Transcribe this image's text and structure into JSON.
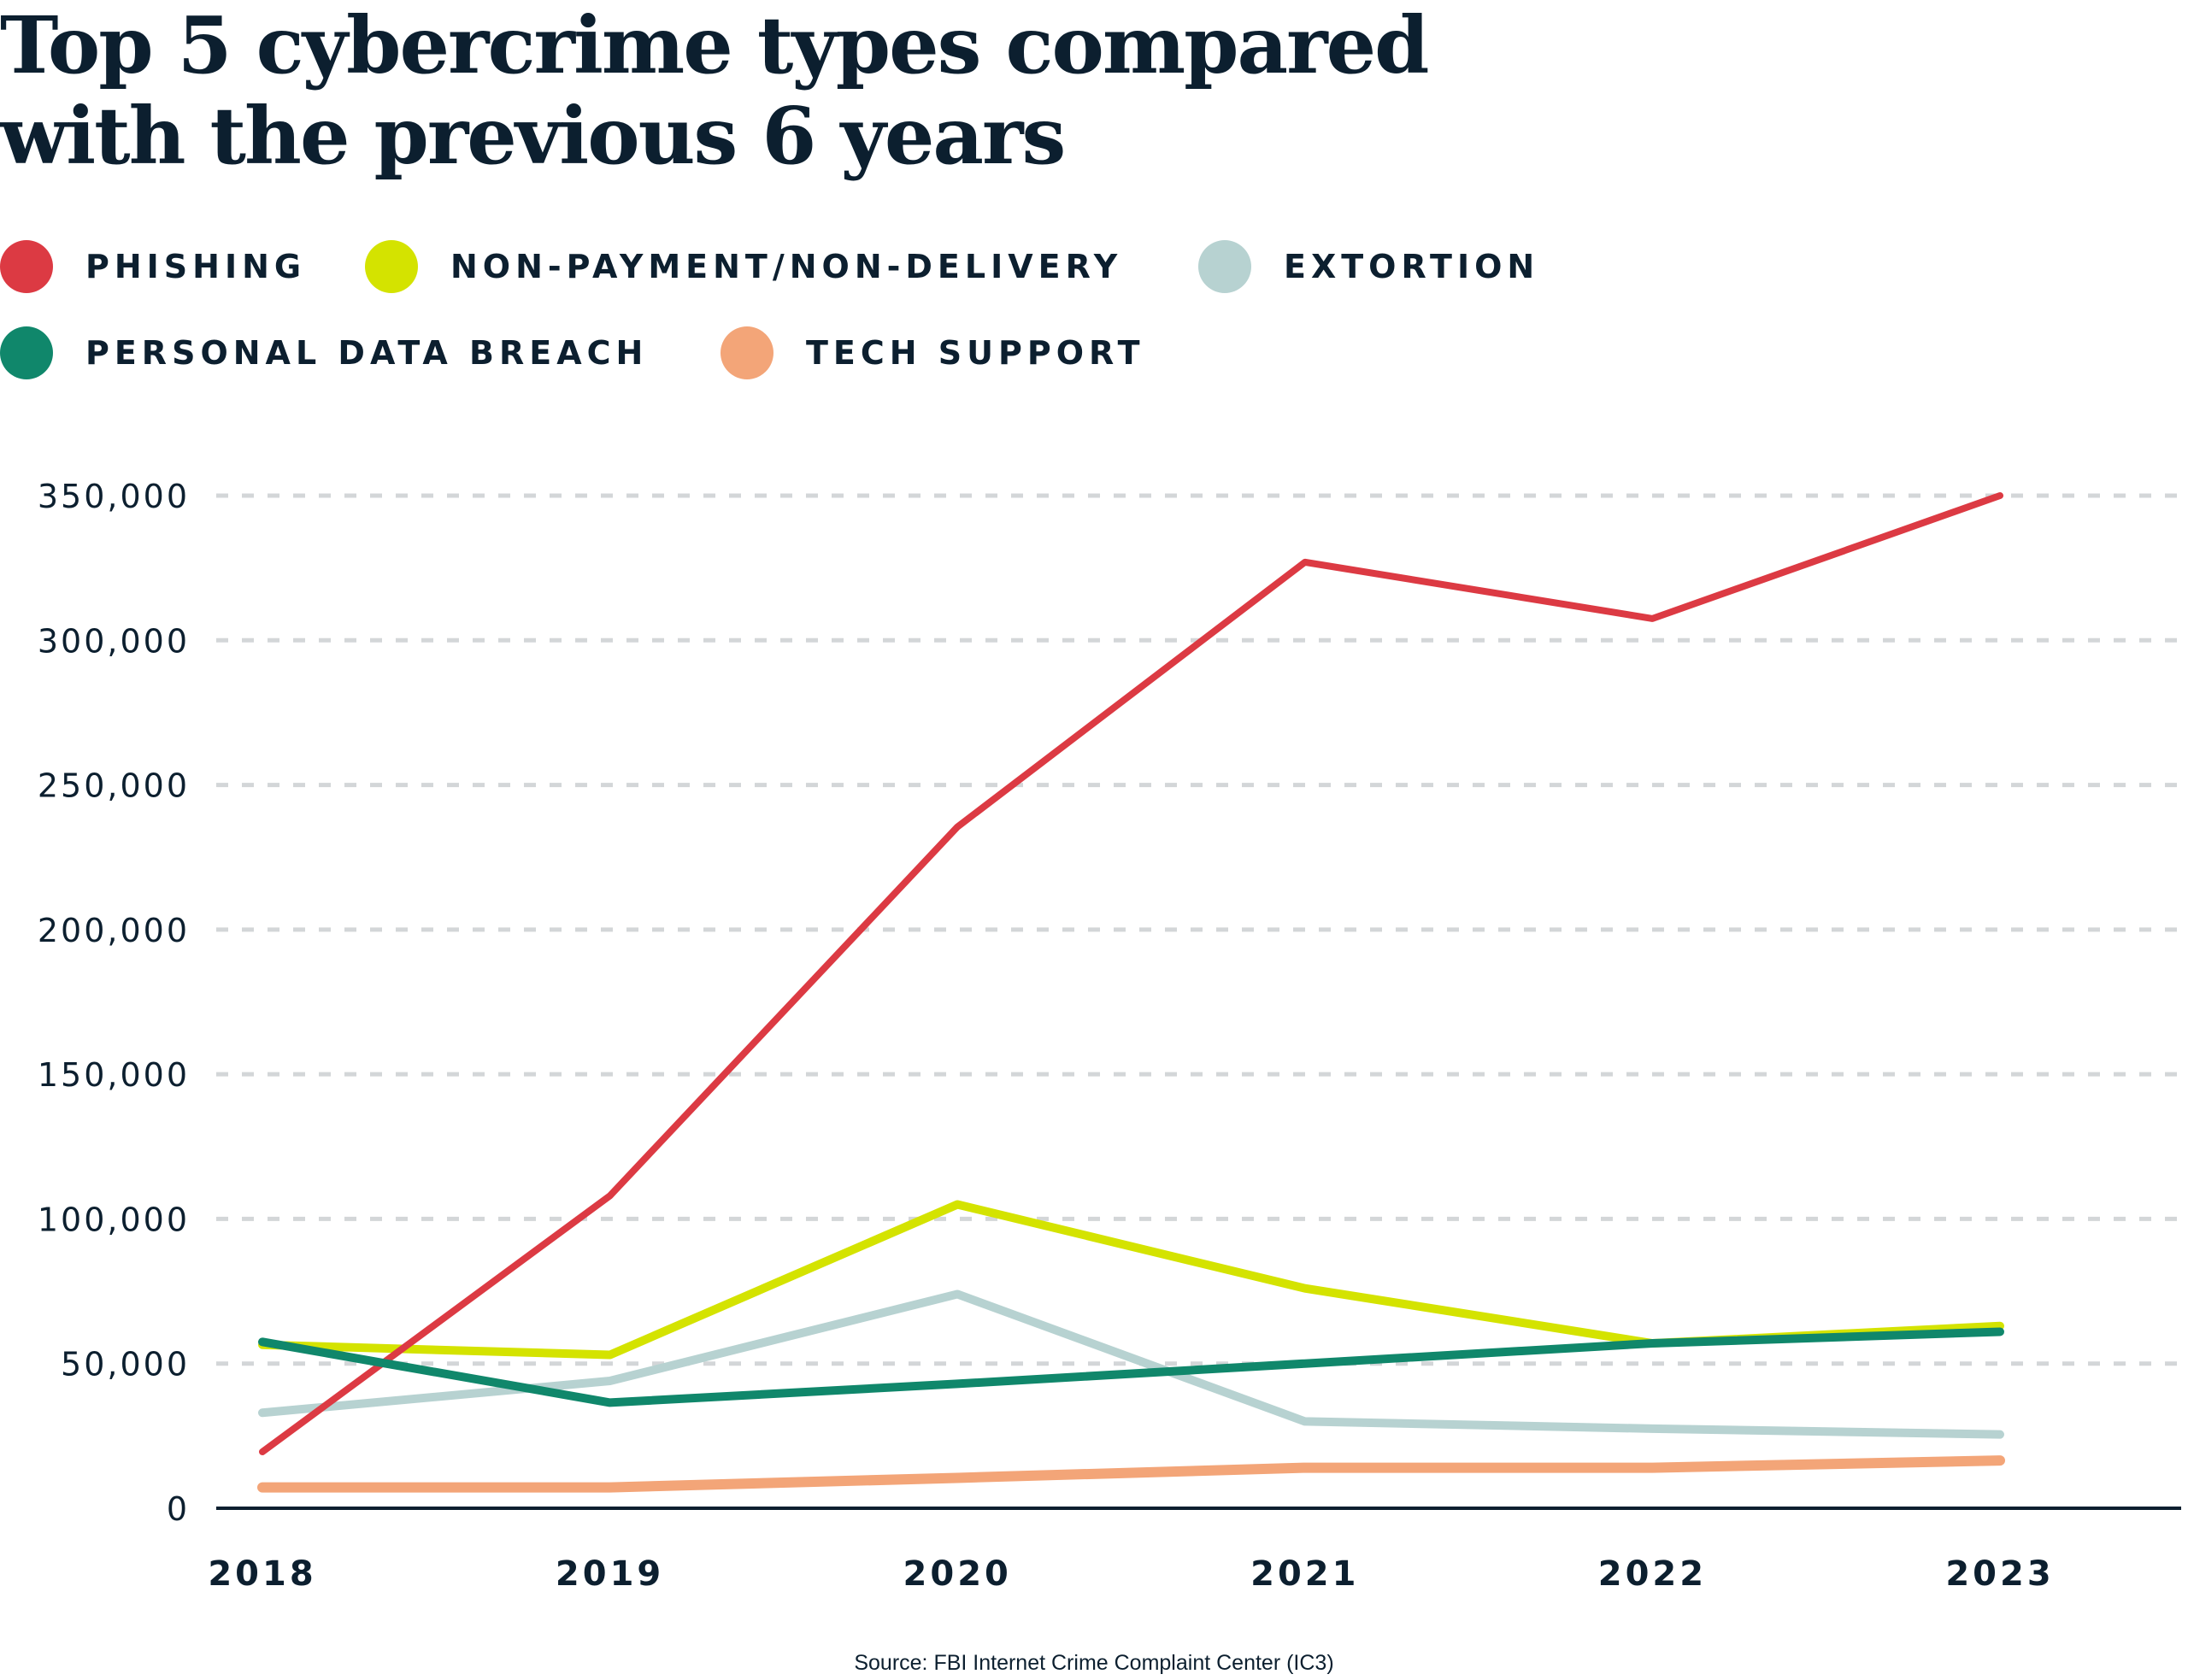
{
  "title_lines": [
    "Top 5 cybercrime types compared",
    "with the previous 6 years"
  ],
  "source": "Source: FBI Internet Crime Complaint Center (IC3)",
  "chart_data": {
    "type": "line",
    "title": "Top 5 cybercrime types compared with the previous 6 years",
    "x": [
      "2018",
      "2019",
      "2020",
      "2021",
      "2022",
      "2023"
    ],
    "ylim": [
      0,
      350000
    ],
    "yticks": [
      0,
      50000,
      100000,
      150000,
      200000,
      250000,
      300000,
      350000
    ],
    "ytick_labels": [
      "0",
      "50,000",
      "100,000",
      "150,000",
      "200,000",
      "250,000",
      "300,000",
      "350,000"
    ],
    "grid": "horizontal dashed",
    "legend_placement": "top-left",
    "series": [
      {
        "name": "PHISHING",
        "color": "#dc3a43",
        "values": [
          19500,
          108000,
          235500,
          327000,
          307500,
          350000
        ]
      },
      {
        "name": "NON-PAYMENT/NON-DELIVERY",
        "color": "#d4e300",
        "values": [
          56500,
          53000,
          105000,
          76000,
          57000,
          63000
        ]
      },
      {
        "name": "EXTORTION",
        "color": "#b7d2d1",
        "values": [
          33000,
          44000,
          74000,
          30000,
          27500,
          25500
        ]
      },
      {
        "name": "PERSONAL DATA BREACH",
        "color": "#10876b",
        "values": [
          57500,
          36500,
          43000,
          50000,
          57000,
          61000
        ]
      },
      {
        "name": "TECH SUPPORT",
        "color": "#f3a578",
        "values": [
          7200,
          7200,
          10500,
          14000,
          14000,
          16500
        ]
      }
    ]
  }
}
